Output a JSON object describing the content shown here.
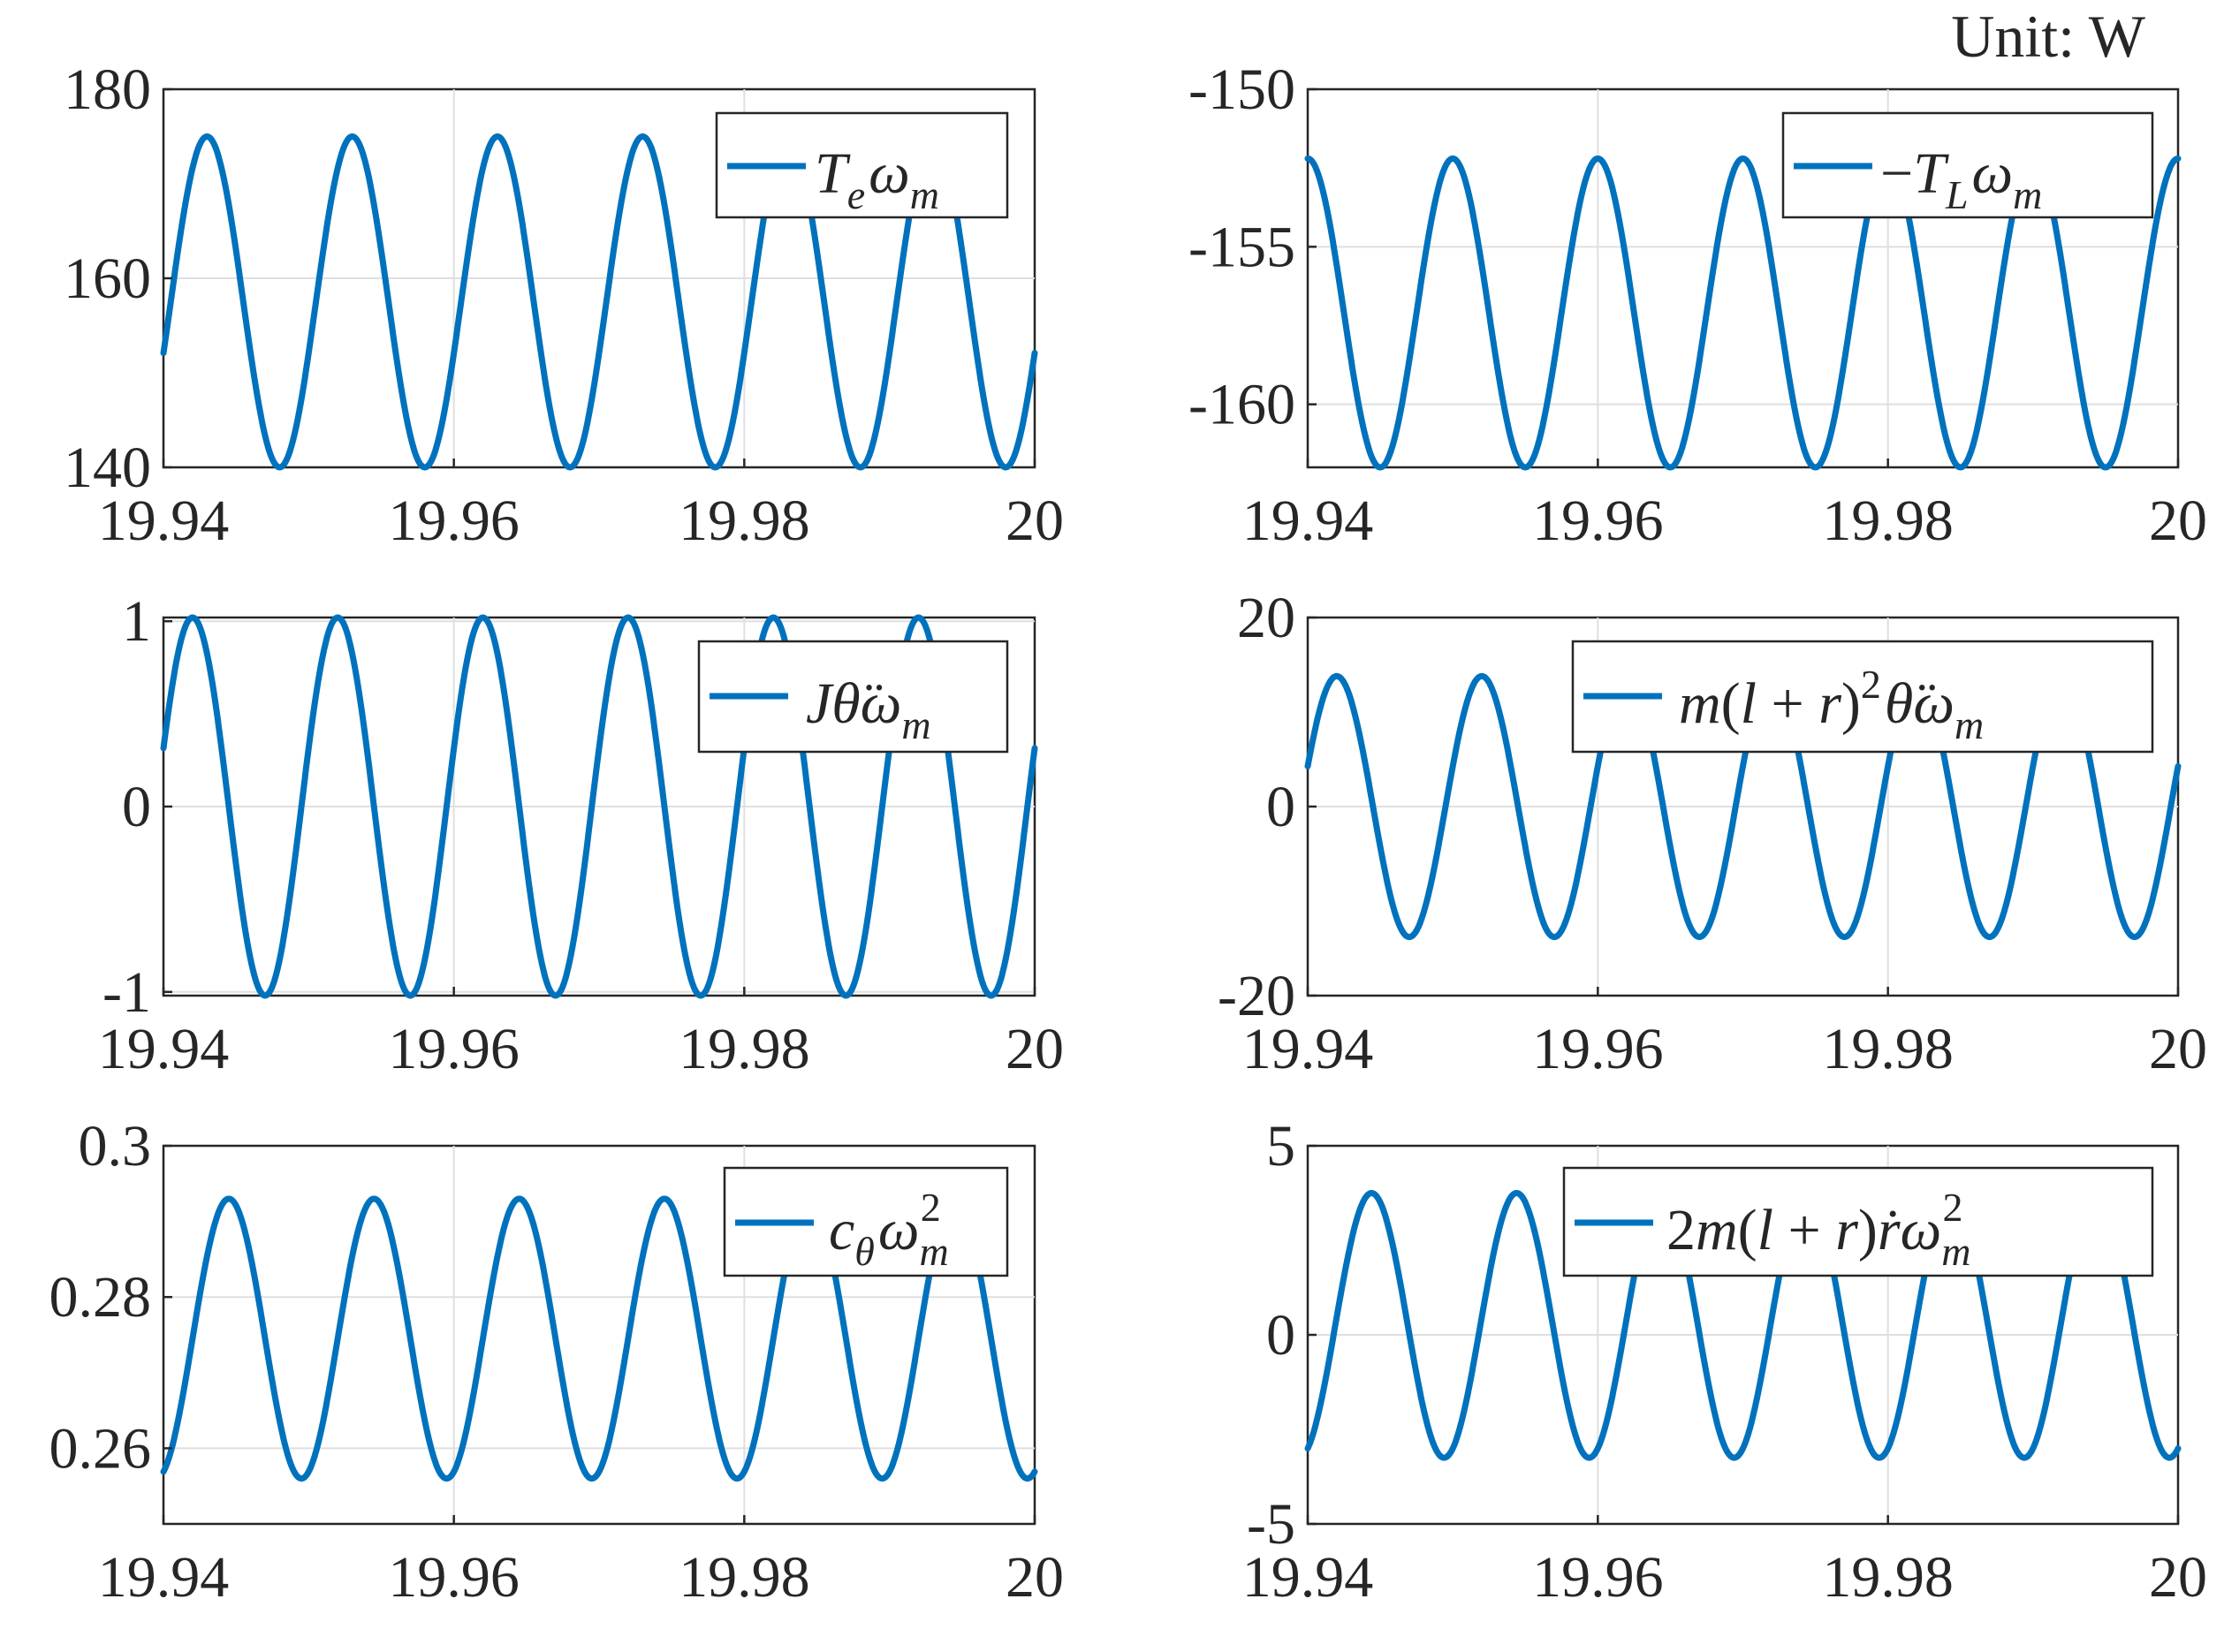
{
  "unit_label": "Unit: W",
  "colors": {
    "series": "#0072BD",
    "axis": "#262626",
    "grid": "#dfdfdf"
  },
  "chart_data": [
    {
      "type": "line",
      "legend": "Teωm",
      "legend_position": "top-right",
      "grid": true,
      "xlim": [
        19.94,
        20
      ],
      "ylim": [
        140,
        180
      ],
      "xticks": [
        19.94,
        19.96,
        19.98,
        20
      ],
      "xtick_labels": [
        "19.94",
        "19.96",
        "19.98",
        "20"
      ],
      "yticks": [
        140,
        160,
        180
      ],
      "ytick_labels": [
        "140",
        "160",
        "180"
      ],
      "series": [
        {
          "mean": 157.5,
          "amplitude": 17.5,
          "period": 0.01,
          "peak_x": [
            19.943,
            19.953,
            19.963,
            19.973,
            19.983,
            19.993
          ],
          "min_value": 140,
          "max_value": 175
        }
      ]
    },
    {
      "type": "line",
      "legend": "−TLωm",
      "legend_position": "top-right",
      "grid": true,
      "xlim": [
        19.94,
        20
      ],
      "ylim": [
        -162,
        -150
      ],
      "xticks": [
        19.94,
        19.96,
        19.98,
        20
      ],
      "xtick_labels": [
        "19.94",
        "19.96",
        "19.98",
        "20"
      ],
      "yticks": [
        -160,
        -155,
        -150
      ],
      "ytick_labels": [
        "-160",
        "-155",
        "-150"
      ],
      "series": [
        {
          "mean": -157.1,
          "amplitude": 4.9,
          "period": 0.01,
          "peak_x": [
            19.94,
            19.95,
            19.96,
            19.97,
            19.98,
            19.99,
            20.0
          ],
          "min_value": -162,
          "max_value": -152.2
        }
      ]
    },
    {
      "type": "line",
      "legend": "Jθ̈ωm",
      "legend_position": "top-right",
      "grid": true,
      "xlim": [
        19.94,
        20
      ],
      "ylim": [
        -1.02,
        1.02
      ],
      "xticks": [
        19.94,
        19.96,
        19.98,
        20
      ],
      "xtick_labels": [
        "19.94",
        "19.96",
        "19.98",
        "20"
      ],
      "yticks": [
        -1,
        0,
        1
      ],
      "ytick_labels": [
        "-1",
        "0",
        "1"
      ],
      "series": [
        {
          "mean": 0,
          "amplitude": 1.02,
          "period": 0.01,
          "peak_x": [
            19.942,
            19.952,
            19.962,
            19.972,
            19.982,
            19.992
          ],
          "min_value": -1.02,
          "max_value": 1.02
        }
      ]
    },
    {
      "type": "line",
      "legend": "m(l+r)²θ̈ωm",
      "legend_position": "top-right",
      "grid": true,
      "xlim": [
        19.94,
        20
      ],
      "ylim": [
        -20,
        20
      ],
      "xticks": [
        19.94,
        19.96,
        19.98,
        20
      ],
      "xtick_labels": [
        "19.94",
        "19.96",
        "19.98",
        "20"
      ],
      "yticks": [
        -20,
        0,
        20
      ],
      "ytick_labels": [
        "-20",
        "0",
        "20"
      ],
      "series": [
        {
          "mean": 0,
          "amplitude": 13.8,
          "period": 0.01,
          "peak_x": [
            19.942,
            19.952,
            19.962,
            19.972,
            19.982,
            19.992
          ],
          "min_value": -13.8,
          "max_value": 13.8
        }
      ]
    },
    {
      "type": "line",
      "legend": "cθωm²",
      "legend_position": "top-right",
      "grid": true,
      "xlim": [
        19.94,
        20
      ],
      "ylim": [
        0.25,
        0.3
      ],
      "xticks": [
        19.94,
        19.96,
        19.98,
        20
      ],
      "xtick_labels": [
        "19.94",
        "19.96",
        "19.98",
        "20"
      ],
      "yticks": [
        0.26,
        0.28,
        0.3
      ],
      "ytick_labels": [
        "0.26",
        "0.28",
        "0.3"
      ],
      "series": [
        {
          "mean": 0.2745,
          "amplitude": 0.0185,
          "period": 0.01,
          "peak_x": [
            19.9445,
            19.9545,
            19.9645,
            19.9745,
            19.9845,
            19.9945
          ],
          "min_value": 0.256,
          "max_value": 0.293
        }
      ]
    },
    {
      "type": "line",
      "legend": "2m(l+r)ṙωm²",
      "legend_position": "top-right",
      "grid": true,
      "xlim": [
        19.94,
        20
      ],
      "ylim": [
        -5,
        5
      ],
      "xticks": [
        19.94,
        19.96,
        19.98,
        20
      ],
      "xtick_labels": [
        "19.94",
        "19.96",
        "19.98",
        "20"
      ],
      "yticks": [
        -5,
        0,
        5
      ],
      "ytick_labels": [
        "-5",
        "0",
        "5"
      ],
      "series": [
        {
          "mean": 0.25,
          "amplitude": 3.5,
          "period": 0.01,
          "peak_x": [
            19.9444,
            19.9544,
            19.9644,
            19.9744,
            19.9844,
            19.9944
          ],
          "min_value": -3.25,
          "max_value": 3.75
        }
      ]
    }
  ]
}
